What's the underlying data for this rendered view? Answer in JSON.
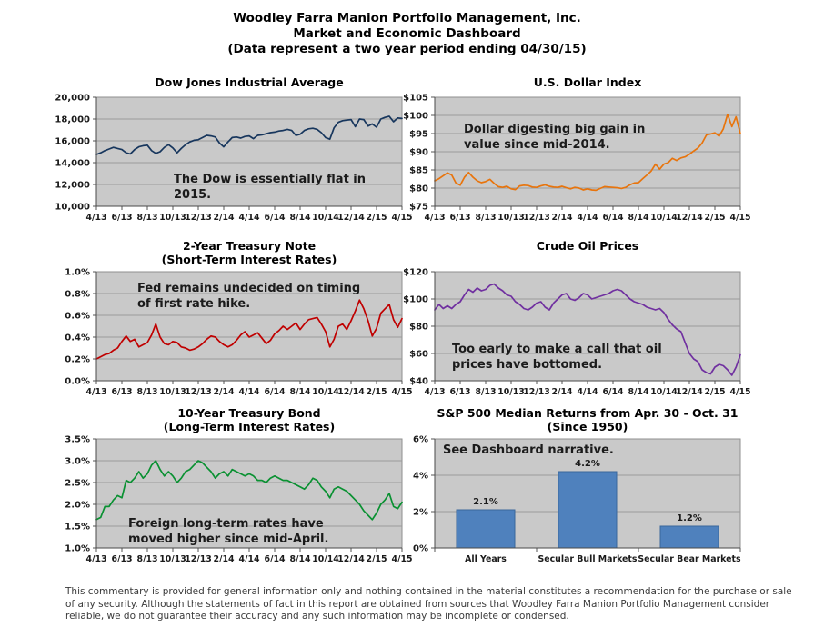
{
  "header": {
    "line1": "Woodley Farra Manion Portfolio Management, Inc.",
    "line2": "Market and Economic Dashboard",
    "line3": "(Data represent a two year period ending 04/30/15)"
  },
  "footer": {
    "text": "This commentary is provided for general information only and nothing contained in the material constitutes a recommendation for the purchase or sale of any security. Although the statements of fact in this report are obtained from sources that Woodley Farra Manion Portfolio Management consider reliable, we do not guarantee their accuracy and any such information may be incomplete or condensed."
  },
  "chart_data": [
    {
      "id": "dow-jones",
      "type": "line",
      "title": "Dow Jones Industrial Average",
      "subtitle": "",
      "annotation_lines": [
        "The Dow is essentially flat in",
        "2015."
      ],
      "color": "#17365D",
      "ylim": [
        10000,
        20000
      ],
      "y_ticks": [
        {
          "v": 10000,
          "label": "10,000"
        },
        {
          "v": 12000,
          "label": "12,000"
        },
        {
          "v": 14000,
          "label": "14,000"
        },
        {
          "v": 16000,
          "label": "16,000"
        },
        {
          "v": 18000,
          "label": "18,000"
        },
        {
          "v": 20000,
          "label": "20,000"
        }
      ],
      "x_ticks": [
        "4/13",
        "6/13",
        "8/13",
        "10/13",
        "12/13",
        "2/14",
        "4/14",
        "6/14",
        "8/14",
        "10/14",
        "12/14",
        "2/15",
        "4/15"
      ],
      "values": [
        14750,
        14900,
        15100,
        15250,
        15400,
        15300,
        15200,
        14900,
        14800,
        15200,
        15450,
        15550,
        15600,
        15100,
        14850,
        15000,
        15400,
        15650,
        15350,
        14900,
        15300,
        15650,
        15900,
        16050,
        16100,
        16300,
        16500,
        16450,
        16350,
        15800,
        15450,
        15900,
        16300,
        16350,
        16250,
        16400,
        16450,
        16200,
        16500,
        16550,
        16650,
        16750,
        16800,
        16900,
        16950,
        17050,
        16950,
        16500,
        16600,
        16950,
        17100,
        17150,
        17050,
        16750,
        16300,
        16150,
        17200,
        17700,
        17850,
        17900,
        17950,
        17300,
        18000,
        17950,
        17350,
        17550,
        17250,
        18000,
        18150,
        18250,
        17750,
        18100,
        18050
      ]
    },
    {
      "id": "us-dollar-index",
      "type": "line",
      "title": "U.S. Dollar Index",
      "subtitle": "",
      "annotation_lines": [
        "Dollar digesting big gain in",
        "value since mid-2014."
      ],
      "color": "#E8740C",
      "ylim": [
        75,
        105
      ],
      "y_ticks": [
        {
          "v": 75,
          "label": "$75"
        },
        {
          "v": 80,
          "label": "$80"
        },
        {
          "v": 85,
          "label": "$85"
        },
        {
          "v": 90,
          "label": "$90"
        },
        {
          "v": 95,
          "label": "$95"
        },
        {
          "v": 100,
          "label": "$100"
        },
        {
          "v": 105,
          "label": "$105"
        }
      ],
      "x_ticks": [
        "4/13",
        "6/13",
        "8/13",
        "10/13",
        "12/13",
        "2/14",
        "4/14",
        "6/14",
        "8/14",
        "10/14",
        "12/14",
        "2/15",
        "4/15"
      ],
      "values": [
        82.0,
        82.6,
        83.4,
        84.2,
        83.6,
        81.4,
        80.8,
        83.0,
        84.3,
        83.0,
        82.0,
        81.5,
        81.8,
        82.4,
        81.3,
        80.4,
        80.2,
        80.5,
        79.8,
        79.6,
        80.6,
        80.8,
        80.7,
        80.3,
        80.2,
        80.6,
        80.9,
        80.5,
        80.3,
        80.2,
        80.5,
        80.1,
        79.8,
        80.2,
        80.0,
        79.5,
        79.8,
        79.5,
        79.4,
        79.9,
        80.4,
        80.3,
        80.2,
        80.1,
        79.9,
        80.2,
        80.9,
        81.4,
        81.5,
        82.6,
        83.6,
        84.7,
        86.6,
        85.2,
        86.6,
        87.0,
        88.2,
        87.6,
        88.3,
        88.6,
        89.3,
        90.2,
        91.0,
        92.4,
        94.6,
        94.9,
        95.2,
        94.3,
        96.3,
        100.3,
        96.9,
        99.6,
        95.0
      ]
    },
    {
      "id": "2yr-treasury-note",
      "type": "line",
      "title": "2-Year Treasury Note",
      "subtitle": "(Short-Term Interest Rates)",
      "annotation_lines": [
        "Fed remains undecided on timing",
        "of first rate hike."
      ],
      "color": "#C00000",
      "ylim": [
        0.0,
        1.0
      ],
      "y_ticks": [
        {
          "v": 0.0,
          "label": "0.0%"
        },
        {
          "v": 0.2,
          "label": "0.2%"
        },
        {
          "v": 0.4,
          "label": "0.4%"
        },
        {
          "v": 0.6,
          "label": "0.6%"
        },
        {
          "v": 0.8,
          "label": "0.8%"
        },
        {
          "v": 1.0,
          "label": "1.0%"
        }
      ],
      "x_ticks": [
        "4/13",
        "6/13",
        "8/13",
        "10/13",
        "12/13",
        "2/14",
        "4/14",
        "6/14",
        "8/14",
        "10/14",
        "12/14",
        "2/15",
        "4/15"
      ],
      "values": [
        0.2,
        0.22,
        0.24,
        0.25,
        0.28,
        0.3,
        0.36,
        0.41,
        0.36,
        0.38,
        0.31,
        0.33,
        0.35,
        0.42,
        0.52,
        0.4,
        0.34,
        0.33,
        0.36,
        0.35,
        0.31,
        0.3,
        0.28,
        0.29,
        0.31,
        0.34,
        0.38,
        0.41,
        0.4,
        0.36,
        0.33,
        0.31,
        0.33,
        0.37,
        0.42,
        0.45,
        0.4,
        0.42,
        0.44,
        0.39,
        0.34,
        0.37,
        0.43,
        0.46,
        0.5,
        0.47,
        0.5,
        0.53,
        0.47,
        0.52,
        0.56,
        0.57,
        0.58,
        0.52,
        0.45,
        0.31,
        0.38,
        0.5,
        0.52,
        0.47,
        0.55,
        0.64,
        0.74,
        0.66,
        0.55,
        0.41,
        0.48,
        0.62,
        0.66,
        0.7,
        0.56,
        0.49,
        0.57
      ]
    },
    {
      "id": "crude-oil-prices",
      "type": "line",
      "title": "Crude Oil Prices",
      "subtitle": "",
      "annotation_lines": [
        "Too early to make a call that oil",
        "prices have bottomed."
      ],
      "color": "#7030A0",
      "ylim": [
        40,
        120
      ],
      "y_ticks": [
        {
          "v": 40,
          "label": "$40"
        },
        {
          "v": 60,
          "label": "$60"
        },
        {
          "v": 80,
          "label": "$80"
        },
        {
          "v": 100,
          "label": "$100"
        },
        {
          "v": 120,
          "label": "$120"
        }
      ],
      "x_ticks": [
        "4/13",
        "6/13",
        "8/13",
        "10/13",
        "12/13",
        "2/14",
        "4/14",
        "6/14",
        "8/14",
        "10/14",
        "12/14",
        "2/15",
        "4/15"
      ],
      "values": [
        92,
        96,
        93,
        95,
        93,
        96,
        98,
        103,
        107,
        105,
        108,
        106,
        107,
        110,
        111,
        108,
        106,
        103,
        102,
        98,
        96,
        93,
        92,
        94,
        97,
        98,
        94,
        92,
        97,
        100,
        103,
        104,
        100,
        99,
        101,
        104,
        103,
        100,
        101,
        102,
        103,
        104,
        106,
        107,
        106,
        103,
        100,
        98,
        97,
        96,
        94,
        93,
        92,
        93,
        90,
        85,
        81,
        78,
        76,
        68,
        60,
        56,
        54,
        48,
        46,
        45,
        50,
        52,
        51,
        48,
        44,
        50,
        59
      ]
    },
    {
      "id": "10yr-treasury-bond",
      "type": "line",
      "title": "10-Year Treasury Bond",
      "subtitle": "(Long-Term Interest Rates)",
      "annotation_lines": [
        "Foreign long-term rates have",
        "moved higher since mid-April."
      ],
      "color": "#0A9132",
      "ylim": [
        1.0,
        3.5
      ],
      "y_ticks": [
        {
          "v": 1.0,
          "label": "1.0%"
        },
        {
          "v": 1.5,
          "label": "1.5%"
        },
        {
          "v": 2.0,
          "label": "2.0%"
        },
        {
          "v": 2.5,
          "label": "2.5%"
        },
        {
          "v": 3.0,
          "label": "3.0%"
        },
        {
          "v": 3.5,
          "label": "3.5%"
        }
      ],
      "x_ticks": [
        "4/13",
        "6/13",
        "8/13",
        "10/13",
        "12/13",
        "2/14",
        "4/14",
        "6/14",
        "8/14",
        "10/14",
        "12/14",
        "2/15",
        "4/15"
      ],
      "values": [
        1.65,
        1.7,
        1.95,
        1.95,
        2.1,
        2.2,
        2.15,
        2.55,
        2.5,
        2.6,
        2.75,
        2.6,
        2.7,
        2.9,
        3.0,
        2.8,
        2.65,
        2.75,
        2.65,
        2.5,
        2.6,
        2.75,
        2.8,
        2.9,
        3.0,
        2.95,
        2.85,
        2.75,
        2.6,
        2.7,
        2.75,
        2.65,
        2.8,
        2.75,
        2.7,
        2.65,
        2.7,
        2.65,
        2.55,
        2.55,
        2.5,
        2.6,
        2.65,
        2.6,
        2.55,
        2.55,
        2.5,
        2.45,
        2.4,
        2.35,
        2.45,
        2.6,
        2.55,
        2.4,
        2.3,
        2.15,
        2.35,
        2.4,
        2.35,
        2.3,
        2.2,
        2.1,
        2.0,
        1.85,
        1.75,
        1.65,
        1.8,
        2.0,
        2.1,
        2.25,
        1.95,
        1.9,
        2.05
      ]
    },
    {
      "id": "sp500-median-returns",
      "type": "bar",
      "title": "S&P 500 Median Returns from Apr. 30 - Oct. 31",
      "subtitle": "(Since 1950)",
      "annotation_lines": [
        "See Dashboard narrative."
      ],
      "color": "#4F81BD",
      "bar_border": "#3A679C",
      "ylim": [
        0,
        6
      ],
      "y_ticks": [
        {
          "v": 0,
          "label": "0%"
        },
        {
          "v": 2,
          "label": "2%"
        },
        {
          "v": 4,
          "label": "4%"
        },
        {
          "v": 6,
          "label": "6%"
        }
      ],
      "categories": [
        "All Years",
        "Secular Bull Markets",
        "Secular Bear Markets"
      ],
      "values": [
        2.1,
        4.2,
        1.2
      ],
      "value_labels": [
        "2.1%",
        "4.2%",
        "1.2%"
      ]
    }
  ]
}
